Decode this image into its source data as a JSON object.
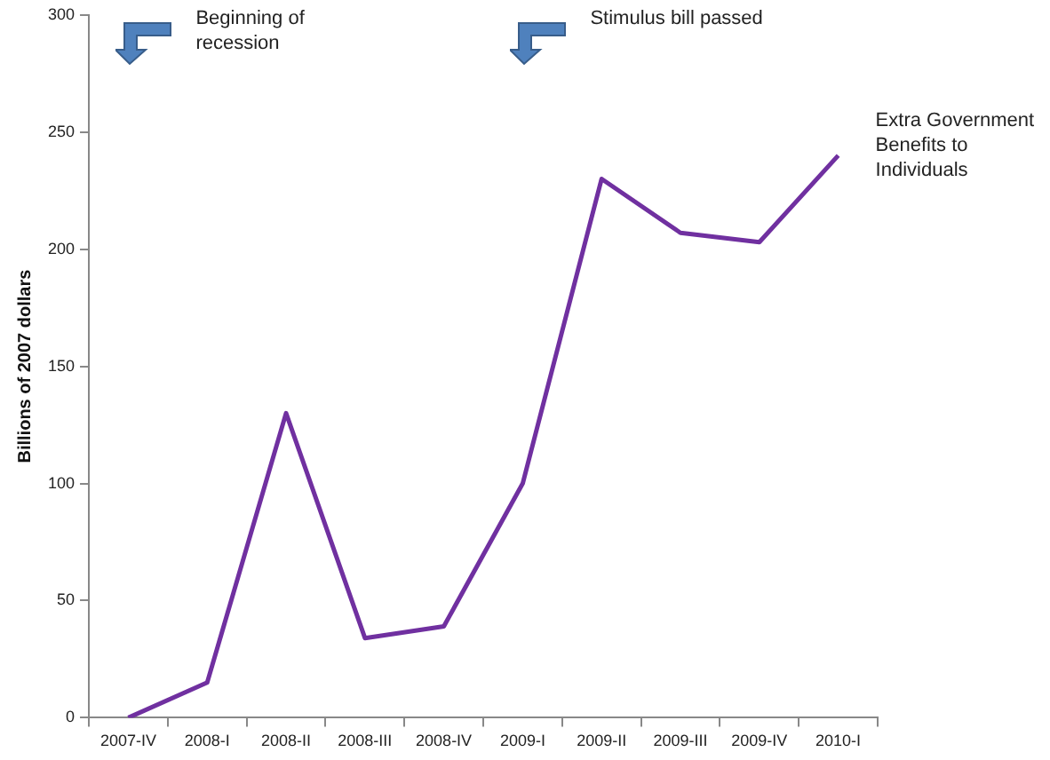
{
  "chart_data": {
    "type": "line",
    "ylabel": "Billions of 2007 dollars",
    "categories": [
      "2007-IV",
      "2008-I",
      "2008-II",
      "2008-III",
      "2008-IV",
      "2009-I",
      "2009-II",
      "2009-III",
      "2009-IV",
      "2010-I"
    ],
    "series": [
      {
        "name": "Extra Government Benefits to Individuals",
        "color": "#7030a0",
        "values": [
          0,
          15,
          130,
          34,
          39,
          100,
          230,
          207,
          203,
          240
        ]
      }
    ],
    "ylim": [
      0,
      300
    ],
    "yticks": [
      0,
      50,
      100,
      150,
      200,
      250,
      300
    ],
    "grid": false,
    "legend": false,
    "marker": "none",
    "line_style": "solid",
    "annotations": [
      "Beginning of recession",
      "Stimulus bill passed"
    ]
  }
}
